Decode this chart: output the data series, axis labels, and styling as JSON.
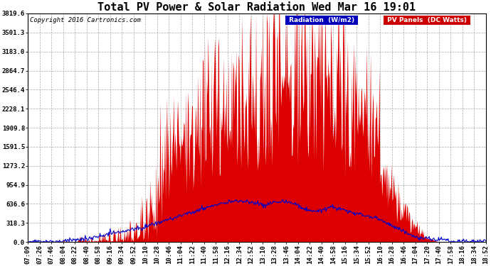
{
  "title": "Total PV Power & Solar Radiation Wed Mar 16 19:01",
  "copyright": "Copyright 2016 Cartronics.com",
  "yticks": [
    0.0,
    318.3,
    636.6,
    954.9,
    1273.2,
    1591.5,
    1909.8,
    2228.1,
    2546.4,
    2864.7,
    3183.0,
    3501.3,
    3819.6
  ],
  "ymax": 3819.6,
  "legend_radiation_label": "Radiation  (W/m2)",
  "legend_pv_label": "PV Panels  (DC Watts)",
  "legend_radiation_bg": "#0000bb",
  "legend_pv_bg": "#cc0000",
  "bg_color": "#ffffff",
  "plot_bg_color": "#ffffff",
  "grid_color": "#aaaaaa",
  "bar_color": "#dd0000",
  "line_color": "#0000cc",
  "title_fontsize": 11,
  "tick_fontsize": 6.5,
  "copyright_fontsize": 6.5,
  "x_labels": [
    "07:09",
    "07:26",
    "07:46",
    "08:04",
    "08:22",
    "08:40",
    "08:58",
    "09:16",
    "09:34",
    "09:52",
    "10:10",
    "10:28",
    "10:46",
    "11:04",
    "11:22",
    "11:40",
    "11:58",
    "12:16",
    "12:34",
    "12:52",
    "13:10",
    "13:28",
    "13:46",
    "14:04",
    "14:22",
    "14:40",
    "14:58",
    "15:16",
    "15:34",
    "15:52",
    "16:10",
    "16:28",
    "16:46",
    "17:04",
    "17:20",
    "17:40",
    "17:58",
    "18:16",
    "18:34",
    "18:52"
  ]
}
